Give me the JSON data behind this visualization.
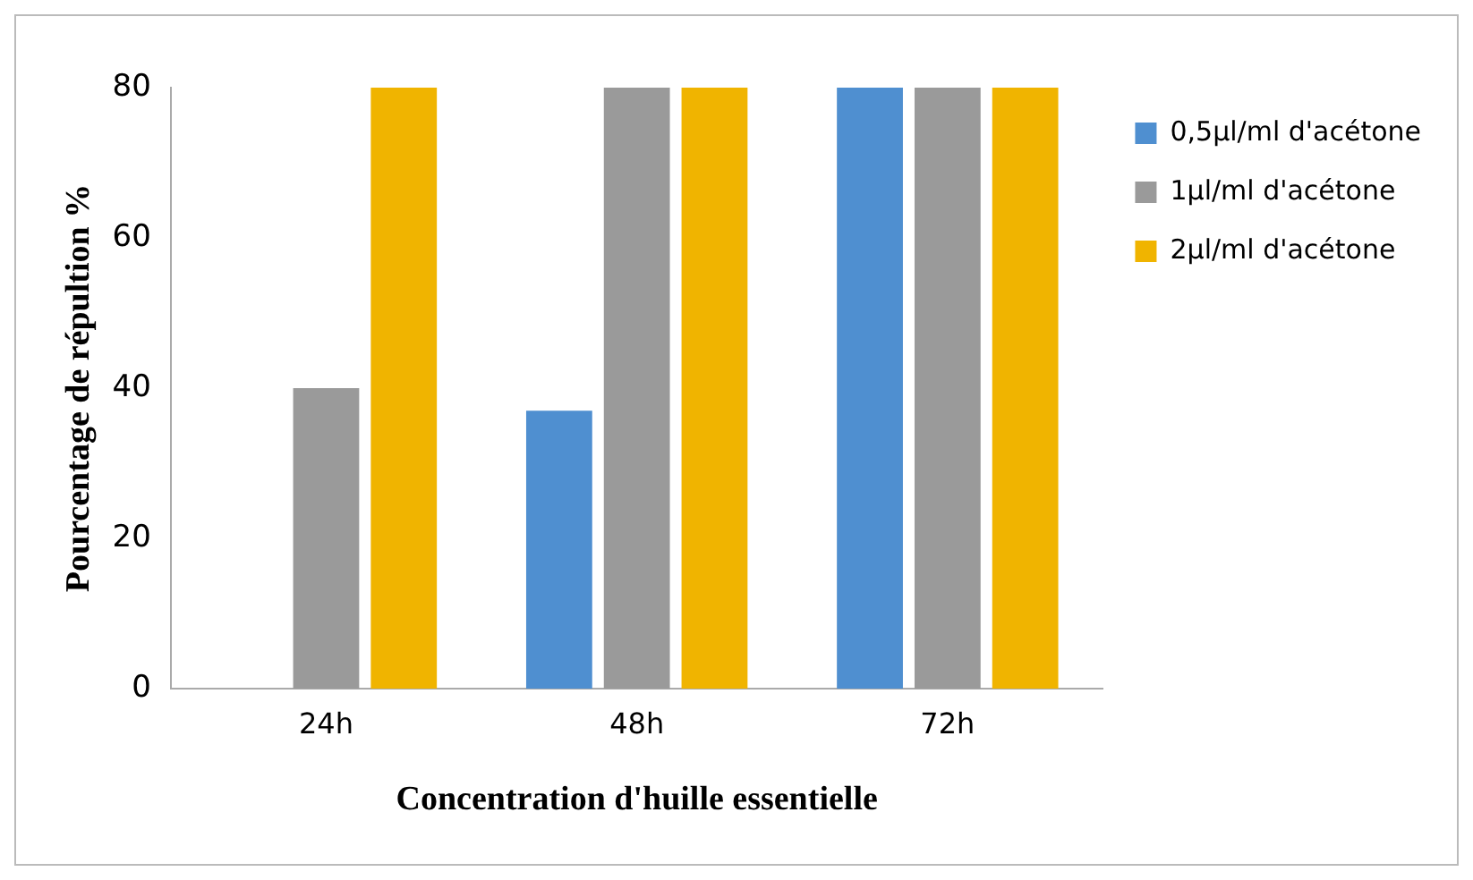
{
  "chart_data": {
    "type": "bar",
    "xlabel": "Concentration d'huille essentielle",
    "ylabel": "Pourcentage de répultion %",
    "categories": [
      "24h",
      "48h",
      "72h"
    ],
    "series": [
      {
        "name": "0,5µl/ml d'acétone",
        "color": "#4f8fd0",
        "values": [
          0,
          37,
          80
        ]
      },
      {
        "name": "1µl/ml d'acétone",
        "color": "#9a9a9a",
        "values": [
          40,
          80,
          80
        ]
      },
      {
        "name": "2µl/ml d'acétone",
        "color": "#f0b400",
        "values": [
          80,
          80,
          80
        ]
      }
    ],
    "ylim": [
      0,
      80
    ],
    "yticks": [
      0,
      20,
      40,
      60,
      80
    ],
    "grid": false,
    "legend": "right"
  }
}
